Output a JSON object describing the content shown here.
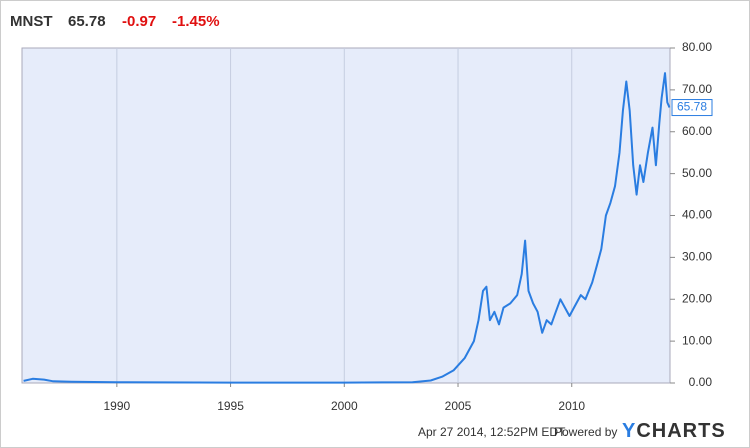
{
  "header": {
    "symbol": "MNST",
    "change": "-0.97",
    "change_pct": "-1.45%"
  },
  "chart_data": {
    "type": "line",
    "series": [
      {
        "name": "MNST",
        "color": "#2a7de1",
        "x": [
          1985.9,
          1986.3,
          1986.8,
          1987.2,
          1988,
          1990,
          1995,
          2000,
          2003,
          2003.8,
          2004.3,
          2004.8,
          2005.3,
          2005.7,
          2005.9,
          2006.1,
          2006.25,
          2006.4,
          2006.6,
          2006.8,
          2007.0,
          2007.3,
          2007.6,
          2007.8,
          2007.95,
          2008.1,
          2008.3,
          2008.5,
          2008.7,
          2008.9,
          2009.1,
          2009.3,
          2009.5,
          2009.7,
          2009.9,
          2010.1,
          2010.4,
          2010.6,
          2010.9,
          2011.1,
          2011.3,
          2011.5,
          2011.7,
          2011.9,
          2012.1,
          2012.25,
          2012.4,
          2012.55,
          2012.7,
          2012.85,
          2013.0,
          2013.15,
          2013.35,
          2013.55,
          2013.7,
          2013.85,
          2013.95,
          2014.1,
          2014.2,
          2014.3
        ],
        "values": [
          0.5,
          1.0,
          0.8,
          0.4,
          0.3,
          0.2,
          0.1,
          0.1,
          0.2,
          0.6,
          1.5,
          3,
          6,
          10,
          15,
          22,
          23,
          15,
          17,
          14,
          18,
          19,
          21,
          26,
          34,
          22,
          19,
          17,
          12,
          15,
          14,
          17,
          20,
          18,
          16,
          18,
          21,
          20,
          24,
          28,
          32,
          40,
          43,
          47,
          55,
          65,
          72,
          65,
          52,
          45,
          52,
          48,
          55,
          61,
          52,
          62,
          68,
          74,
          67,
          65.78
        ]
      }
    ],
    "xlim": [
      1985.83,
      2014.32
    ],
    "xticks": [
      1990,
      1995,
      2000,
      2005,
      2010
    ],
    "ylim": [
      0,
      80
    ],
    "yticks": [
      {
        "value": 0,
        "label": "0.00"
      },
      {
        "value": 10,
        "label": "10.00"
      },
      {
        "value": 20,
        "label": "20.00"
      },
      {
        "value": 30,
        "label": "30.00"
      },
      {
        "value": 40,
        "label": "40.00"
      },
      {
        "value": 50,
        "label": "50.00"
      },
      {
        "value": 60,
        "label": "60.00"
      },
      {
        "value": 70,
        "label": "70.00"
      },
      {
        "value": 80,
        "label": "80.00"
      }
    ],
    "grid": "x"
  },
  "footer": {
    "timestamp": "Apr 27 2014, 12:52PM EDT.",
    "powered": "Powered by",
    "brand": "YCHARTS"
  }
}
